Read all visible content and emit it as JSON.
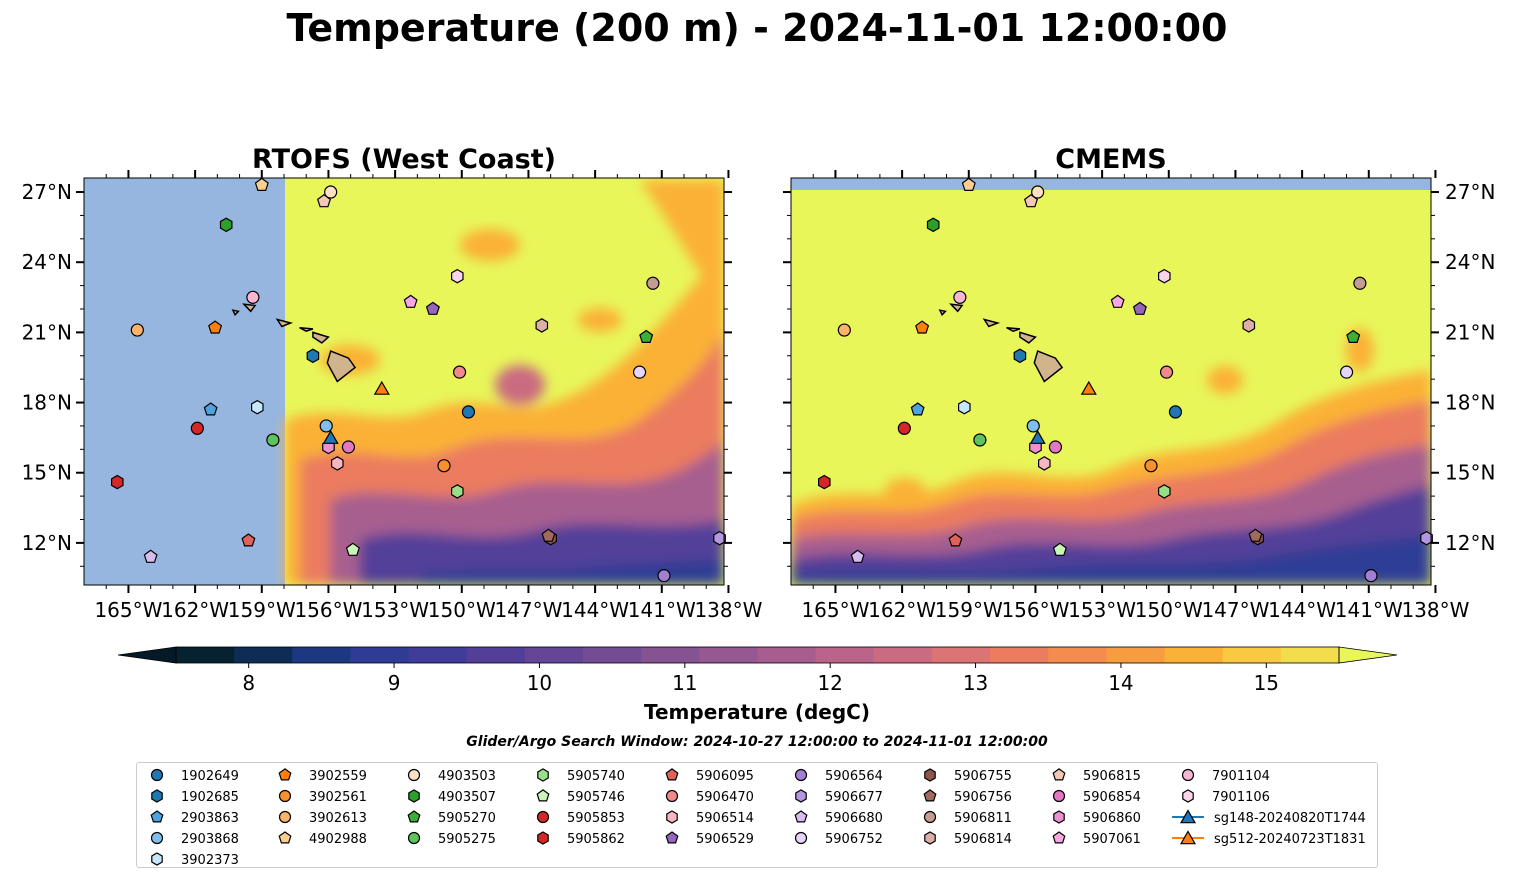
{
  "figure": {
    "title": "Temperature (200 m) - 2024-11-01 12:00:00",
    "search_window": "Glider/Argo Search Window: 2024-10-27 12:00:00 to 2024-11-01 12:00:00"
  },
  "colors": {
    "land": "#d2b48c",
    "nodata": "#96b6e0",
    "field_warm": "#e8f65a"
  },
  "chart_data": [
    {
      "type": "heatmap",
      "title": "RTOFS (West Coast)",
      "x_ticks": [
        "165°W",
        "162°W",
        "159°W",
        "156°W",
        "153°W",
        "150°W",
        "147°W",
        "144°W",
        "141°W",
        "138°W"
      ],
      "y_ticks": [
        "12°N",
        "15°N",
        "18°N",
        "21°N",
        "24°N",
        "27°N"
      ],
      "xlim": [
        -167,
        -138.2
      ],
      "ylim": [
        10.2,
        27.6
      ],
      "data_extent_west": -158
    },
    {
      "type": "heatmap",
      "title": "CMEMS",
      "x_ticks": [
        "165°W",
        "162°W",
        "159°W",
        "156°W",
        "153°W",
        "150°W",
        "147°W",
        "144°W",
        "141°W",
        "138°W"
      ],
      "y_ticks": [
        "12°N",
        "15°N",
        "18°N",
        "21°N",
        "24°N",
        "27°N"
      ],
      "xlim": [
        -167,
        -138.2
      ],
      "ylim": [
        10.2,
        27.6
      ],
      "data_extent_north": 27.1
    }
  ],
  "colorbar": {
    "label": "Temperature (degC)",
    "min": 7.5,
    "max": 15.5,
    "ticks": [
      "8",
      "9",
      "10",
      "11",
      "12",
      "13",
      "14",
      "15"
    ],
    "colors": [
      "#06212f",
      "#0f2c57",
      "#1d3880",
      "#2f3c95",
      "#3f3d99",
      "#533f99",
      "#644596",
      "#744c94",
      "#855292",
      "#965891",
      "#a75e8f",
      "#ba648a",
      "#cb6b81",
      "#dc7374",
      "#eb7c5f",
      "#f38c4c",
      "#f89d3f",
      "#fbb135",
      "#f9c93f",
      "#f2de4c"
    ],
    "extend_low": "#051a26",
    "extend_high": "#e8f65a"
  },
  "stations": [
    {
      "id": "1902649",
      "marker": "circle",
      "color": "#1f77b4",
      "lon": -149.7,
      "lat": 17.6
    },
    {
      "id": "1902685",
      "marker": "hexagon",
      "color": "#1f77b4",
      "lon": -156.7,
      "lat": 20.0
    },
    {
      "id": "2903863",
      "marker": "pentagon",
      "color": "#4ca3e0",
      "lon": -161.3,
      "lat": 17.7
    },
    {
      "id": "2903868",
      "marker": "circle",
      "color": "#80bfec",
      "lon": -156.1,
      "lat": 17.0
    },
    {
      "id": "3902373",
      "marker": "hexagon",
      "color": "#c6e6fb",
      "lon": -159.2,
      "lat": 17.8
    },
    {
      "id": "3902559",
      "marker": "pentagon",
      "color": "#ff7f0e",
      "lon": -161.1,
      "lat": 21.2
    },
    {
      "id": "3902561",
      "marker": "circle",
      "color": "#f7902f",
      "lon": -150.8,
      "lat": 15.3
    },
    {
      "id": "3902613",
      "marker": "circle",
      "color": "#fcb36a",
      "lon": -164.6,
      "lat": 21.1
    },
    {
      "id": "4902988",
      "marker": "pentagon",
      "color": "#fdcf8f",
      "lon": -159.0,
      "lat": 27.3
    },
    {
      "id": "4903503",
      "marker": "circle",
      "color": "#fde0c5",
      "lon": -155.9,
      "lat": 27.0
    },
    {
      "id": "4903507",
      "marker": "hexagon",
      "color": "#2ca02c",
      "lon": -160.6,
      "lat": 25.6
    },
    {
      "id": "5905270",
      "marker": "pentagon",
      "color": "#3aaf3a",
      "lon": -141.7,
      "lat": 20.8
    },
    {
      "id": "5905275",
      "marker": "circle",
      "color": "#5dc45d",
      "lon": -158.5,
      "lat": 16.4
    },
    {
      "id": "5905740",
      "marker": "hexagon",
      "color": "#98df8a",
      "lon": -150.2,
      "lat": 14.2
    },
    {
      "id": "5905746",
      "marker": "pentagon",
      "color": "#c9f5b8",
      "lon": -154.9,
      "lat": 11.7
    },
    {
      "id": "5905853",
      "marker": "circle",
      "color": "#d62728",
      "lon": -161.9,
      "lat": 16.9
    },
    {
      "id": "5905862",
      "marker": "hexagon",
      "color": "#d62728",
      "lon": -165.5,
      "lat": 14.6
    },
    {
      "id": "5906095",
      "marker": "pentagon",
      "color": "#e0635a",
      "lon": -159.6,
      "lat": 12.1
    },
    {
      "id": "5906470",
      "marker": "circle",
      "color": "#f08a8a",
      "lon": -150.1,
      "lat": 19.3
    },
    {
      "id": "5906514",
      "marker": "hexagon",
      "color": "#f7b6c2",
      "lon": -155.6,
      "lat": 15.4
    },
    {
      "id": "5906529",
      "marker": "pentagon",
      "color": "#9467bd",
      "lon": -151.3,
      "lat": 22.0
    },
    {
      "id": "5906564",
      "marker": "circle",
      "color": "#a27fd0",
      "lon": -140.9,
      "lat": 10.6
    },
    {
      "id": "5906677",
      "marker": "hexagon",
      "color": "#b596e0",
      "lon": -138.4,
      "lat": 12.2
    },
    {
      "id": "5906680",
      "marker": "pentagon",
      "color": "#d5bdf0",
      "lon": -164.0,
      "lat": 11.4
    },
    {
      "id": "5906752",
      "marker": "circle",
      "color": "#e6d5fa",
      "lon": -142.0,
      "lat": 19.3
    },
    {
      "id": "5906755",
      "marker": "hexagon",
      "color": "#8c564b",
      "lon": -146.0,
      "lat": 12.2
    },
    {
      "id": "5906756",
      "marker": "pentagon",
      "color": "#a06a5e",
      "lon": -146.1,
      "lat": 12.3
    },
    {
      "id": "5906811",
      "marker": "circle",
      "color": "#c49c94",
      "lon": -141.4,
      "lat": 23.1
    },
    {
      "id": "5906814",
      "marker": "hexagon",
      "color": "#dcb0a4",
      "lon": -146.4,
      "lat": 21.3
    },
    {
      "id": "5906815",
      "marker": "pentagon",
      "color": "#f3c9b5",
      "lon": -156.2,
      "lat": 26.6
    },
    {
      "id": "5906854",
      "marker": "circle",
      "color": "#e377c2",
      "lon": -155.1,
      "lat": 16.1
    },
    {
      "id": "5906860",
      "marker": "hexagon",
      "color": "#ee8fd2",
      "lon": -156.0,
      "lat": 16.1
    },
    {
      "id": "5907061",
      "marker": "pentagon",
      "color": "#f7a8e4",
      "lon": -152.3,
      "lat": 22.3
    },
    {
      "id": "7901104",
      "marker": "circle",
      "color": "#f7b6d2",
      "lon": -159.4,
      "lat": 22.5
    },
    {
      "id": "7901106",
      "marker": "hexagon",
      "color": "#fbd3ea",
      "lon": -150.2,
      "lat": 23.4
    },
    {
      "id": "sg148-20240820T1744",
      "marker": "triangle",
      "color": "#1f77b4",
      "lon": -155.9,
      "lat": 16.5
    },
    {
      "id": "sg512-20240723T1831",
      "marker": "triangle",
      "color": "#ff7f0e",
      "lon": -153.6,
      "lat": 18.6
    }
  ]
}
